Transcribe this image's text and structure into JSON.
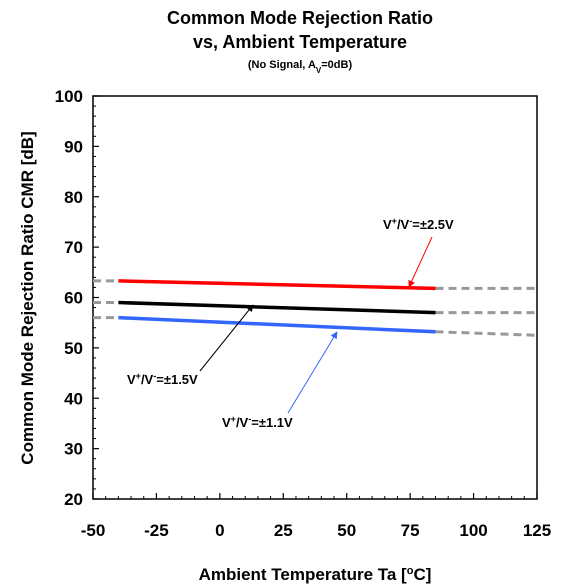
{
  "chart_data": {
    "type": "line",
    "title_line1": "Common Mode Rejection Ratio",
    "title_line2": "vs, Ambient Temperature",
    "subtitle": {
      "prefix": "(No Signal, A",
      "sub": "V",
      "suffix": "=0dB)"
    },
    "xlabel": {
      "prefix": "Ambient Temperature Ta [",
      "sup": "o",
      "suffix": "C]"
    },
    "ylabel": "Common Mode Rejection Ratio CMR [dB]",
    "xlim": [
      -50,
      125
    ],
    "ylim": [
      20,
      100
    ],
    "x_ticks": [
      "-50",
      "-25",
      "0",
      "25",
      "50",
      "75",
      "100",
      "125"
    ],
    "y_ticks": [
      "20",
      "30",
      "40",
      "50",
      "60",
      "70",
      "80",
      "90",
      "100"
    ],
    "grid": false,
    "series": [
      {
        "name": "V+/V-=±2.5V",
        "label": {
          "a": "V",
          "b": "+",
          "c": "/V",
          "d": "-",
          "e": "=±2.5V"
        },
        "color": "#ff0000",
        "x": [
          -40,
          85
        ],
        "y": [
          63.3,
          61.8
        ],
        "extrap_left": {
          "x": [
            -50,
            -40
          ],
          "y": [
            63.3,
            63.3
          ]
        },
        "extrap_right": {
          "x": [
            85,
            125
          ],
          "y": [
            61.8,
            61.8
          ]
        }
      },
      {
        "name": "V+/V-=±1.5V",
        "label": {
          "a": "V",
          "b": "+",
          "c": "/V",
          "d": "-",
          "e": "=±1.5V"
        },
        "color": "#000000",
        "x": [
          -40,
          85
        ],
        "y": [
          59.0,
          57.0
        ],
        "extrap_left": {
          "x": [
            -50,
            -40
          ],
          "y": [
            59.0,
            59.0
          ]
        },
        "extrap_right": {
          "x": [
            85,
            125
          ],
          "y": [
            57.0,
            57.0
          ]
        }
      },
      {
        "name": "V+/V-=±1.1V",
        "label": {
          "a": "V",
          "b": "+",
          "c": "/V",
          "d": "-",
          "e": "=±1.1V"
        },
        "color": "#3366ff",
        "x": [
          -40,
          85
        ],
        "y": [
          56.0,
          53.2
        ],
        "extrap_left": {
          "x": [
            -50,
            -40
          ],
          "y": [
            56.0,
            56.0
          ]
        },
        "extrap_right": {
          "x": [
            85,
            125
          ],
          "y": [
            53.2,
            52.5
          ]
        }
      }
    ],
    "extrapolation_color": "#999999"
  }
}
